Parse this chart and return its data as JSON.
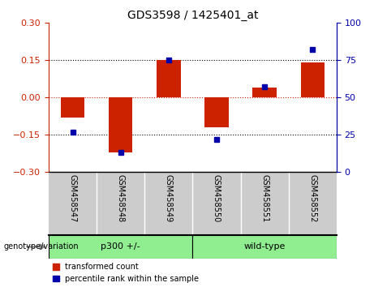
{
  "title": "GDS3598 / 1425401_at",
  "samples": [
    "GSM458547",
    "GSM458548",
    "GSM458549",
    "GSM458550",
    "GSM458551",
    "GSM458552"
  ],
  "transformed_counts": [
    -0.08,
    -0.22,
    0.15,
    -0.12,
    0.04,
    0.14
  ],
  "percentile_ranks": [
    27,
    13,
    75,
    22,
    57,
    82
  ],
  "group1_label": "p300 +/-",
  "group1_span": [
    0,
    3
  ],
  "group2_label": "wild-type",
  "group2_span": [
    3,
    6
  ],
  "group_color": "#90EE90",
  "ylim_left": [
    -0.3,
    0.3
  ],
  "ylim_right": [
    0,
    100
  ],
  "yticks_left": [
    -0.3,
    -0.15,
    0,
    0.15,
    0.3
  ],
  "yticks_right": [
    0,
    25,
    50,
    75,
    100
  ],
  "red_color": "#CC2200",
  "blue_color": "#0000AA",
  "label_bg_color": "#CCCCCC",
  "bar_width": 0.5,
  "dotted_lines": [
    -0.15,
    0.15
  ],
  "genotype_label": "genotype/variation",
  "legend1": "transformed count",
  "legend2": "percentile rank within the sample",
  "title_fontsize": 10,
  "tick_fontsize": 8,
  "label_fontsize": 7,
  "group_fontsize": 8
}
